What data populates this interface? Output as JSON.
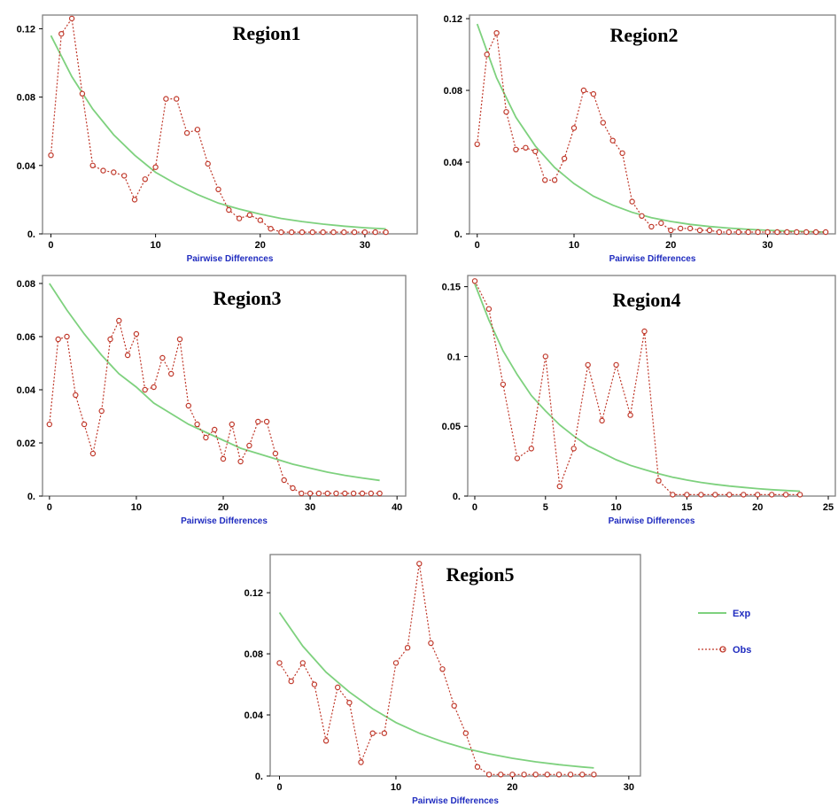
{
  "colors": {
    "exp": "#7ed17e",
    "obs": "#c0392b",
    "frame": "#808080",
    "xlabel": "#1f2bbf"
  },
  "legend": {
    "placement": "right-of-region5",
    "entries": [
      {
        "label": "Exp",
        "style": "solid-line"
      },
      {
        "label": "Obs",
        "style": "dotted-circle"
      }
    ]
  },
  "chart_data": [
    {
      "type": "line",
      "title": "Region1",
      "xlabel": "Pairwise Differences",
      "ylabel": "",
      "xlim": [
        -0.8,
        35
      ],
      "ylim": [
        0,
        0.128
      ],
      "x_ticks": [
        0,
        10,
        20,
        30
      ],
      "x_tick_labels": [
        "0",
        "10",
        "20",
        "30"
      ],
      "y_ticks": [
        0,
        0.04,
        0.08,
        0.12
      ],
      "y_tick_labels": [
        "0.",
        "0.04",
        "0.08",
        "0.12"
      ],
      "series": [
        {
          "name": "Exp",
          "x": [
            0,
            2,
            4,
            6,
            8,
            10,
            12,
            14,
            16,
            18,
            20,
            22,
            24,
            26,
            28,
            30,
            32
          ],
          "values": [
            0.116,
            0.092,
            0.073,
            0.058,
            0.046,
            0.036,
            0.029,
            0.023,
            0.018,
            0.0145,
            0.0115,
            0.009,
            0.0072,
            0.0057,
            0.0045,
            0.0036,
            0.0029
          ]
        },
        {
          "name": "Obs",
          "x": [
            0,
            1,
            2,
            3,
            4,
            5,
            6,
            7,
            8,
            9,
            10,
            11,
            12,
            13,
            14,
            15,
            16,
            17,
            18,
            19,
            20,
            21,
            22,
            23,
            24,
            25,
            26,
            27,
            28,
            29,
            30,
            31,
            32
          ],
          "values": [
            0.046,
            0.117,
            0.126,
            0.082,
            0.04,
            0.037,
            0.036,
            0.034,
            0.02,
            0.032,
            0.039,
            0.079,
            0.079,
            0.059,
            0.061,
            0.041,
            0.026,
            0.014,
            0.009,
            0.011,
            0.008,
            0.003,
            0.001,
            0.001,
            0.001,
            0.001,
            0.001,
            0.001,
            0.001,
            0.001,
            0.001,
            0.001,
            0.001
          ]
        }
      ]
    },
    {
      "type": "line",
      "title": "Region2",
      "xlabel": "Pairwise Differences",
      "ylabel": "",
      "xlim": [
        -0.8,
        37
      ],
      "ylim": [
        0,
        0.122
      ],
      "x_ticks": [
        0,
        10,
        20,
        30
      ],
      "x_tick_labels": [
        "0",
        "10",
        "20",
        "30"
      ],
      "y_ticks": [
        0,
        0.04,
        0.08,
        0.12
      ],
      "y_tick_labels": [
        "0.",
        "0.04",
        "0.08",
        "0.12"
      ],
      "series": [
        {
          "name": "Exp",
          "x": [
            0,
            2,
            4,
            6,
            8,
            10,
            12,
            14,
            16,
            18,
            20,
            22,
            24,
            26,
            28,
            30,
            32,
            34,
            36
          ],
          "values": [
            0.117,
            0.087,
            0.065,
            0.049,
            0.037,
            0.028,
            0.021,
            0.016,
            0.012,
            0.009,
            0.0069,
            0.0053,
            0.0041,
            0.0032,
            0.0025,
            0.002,
            0.0016,
            0.0013,
            0.001
          ]
        },
        {
          "name": "Obs",
          "x": [
            0,
            1,
            2,
            3,
            4,
            5,
            6,
            7,
            8,
            9,
            10,
            11,
            12,
            13,
            14,
            15,
            16,
            17,
            18,
            19,
            20,
            21,
            22,
            23,
            24,
            25,
            26,
            27,
            28,
            29,
            30,
            31,
            32,
            33,
            34,
            35,
            36
          ],
          "values": [
            0.05,
            0.1,
            0.112,
            0.068,
            0.047,
            0.048,
            0.046,
            0.03,
            0.03,
            0.042,
            0.059,
            0.08,
            0.078,
            0.062,
            0.052,
            0.045,
            0.018,
            0.01,
            0.004,
            0.006,
            0.002,
            0.003,
            0.003,
            0.002,
            0.002,
            0.001,
            0.001,
            0.001,
            0.001,
            0.001,
            0.001,
            0.001,
            0.001,
            0.001,
            0.001,
            0.001,
            0.001
          ]
        }
      ]
    },
    {
      "type": "line",
      "title": "Region3",
      "xlabel": "Pairwise Differences",
      "ylabel": "",
      "xlim": [
        -0.8,
        41
      ],
      "ylim": [
        0,
        0.083
      ],
      "x_ticks": [
        0,
        10,
        20,
        30,
        40
      ],
      "x_tick_labels": [
        "0",
        "10",
        "20",
        "30",
        "40"
      ],
      "y_ticks": [
        0,
        0.02,
        0.04,
        0.06,
        0.08
      ],
      "y_tick_labels": [
        "0.",
        "0.02",
        "0.04",
        "0.06",
        "0.08"
      ],
      "series": [
        {
          "name": "Exp",
          "x": [
            0,
            2,
            4,
            6,
            8,
            10,
            12,
            14,
            16,
            18,
            20,
            22,
            24,
            26,
            28,
            30,
            32,
            34,
            36,
            38
          ],
          "values": [
            0.08,
            0.07,
            0.061,
            0.053,
            0.046,
            0.041,
            0.035,
            0.031,
            0.027,
            0.024,
            0.021,
            0.018,
            0.016,
            0.014,
            0.012,
            0.0105,
            0.009,
            0.0078,
            0.0068,
            0.0059
          ]
        },
        {
          "name": "Obs",
          "x": [
            0,
            1,
            2,
            3,
            4,
            5,
            6,
            7,
            8,
            9,
            10,
            11,
            12,
            13,
            14,
            15,
            16,
            17,
            18,
            19,
            20,
            21,
            22,
            23,
            24,
            25,
            26,
            27,
            28,
            29,
            30,
            31,
            32,
            33,
            34,
            35,
            36,
            37,
            38
          ],
          "values": [
            0.027,
            0.059,
            0.06,
            0.038,
            0.027,
            0.016,
            0.032,
            0.059,
            0.066,
            0.053,
            0.061,
            0.04,
            0.041,
            0.052,
            0.046,
            0.059,
            0.034,
            0.027,
            0.022,
            0.025,
            0.014,
            0.027,
            0.013,
            0.019,
            0.028,
            0.028,
            0.016,
            0.006,
            0.003,
            0.001,
            0.001,
            0.001,
            0.001,
            0.001,
            0.001,
            0.001,
            0.001,
            0.001,
            0.001
          ]
        }
      ]
    },
    {
      "type": "line",
      "title": "Region4",
      "xlabel": "Pairwise Differences",
      "ylabel": "",
      "xlim": [
        -0.5,
        25.5
      ],
      "ylim": [
        0,
        0.158
      ],
      "x_ticks": [
        0,
        5,
        10,
        15,
        20,
        25
      ],
      "x_tick_labels": [
        "0",
        "5",
        "10",
        "15",
        "20",
        "25"
      ],
      "y_ticks": [
        0,
        0.05,
        0.1,
        0.15
      ],
      "y_tick_labels": [
        "0.",
        "0.05",
        "0.1",
        "0.15"
      ],
      "series": [
        {
          "name": "Exp",
          "x": [
            0,
            1,
            2,
            3,
            4,
            5,
            6,
            7,
            8,
            9,
            10,
            11,
            12,
            13,
            14,
            15,
            16,
            17,
            18,
            19,
            20,
            21,
            22,
            23
          ],
          "values": [
            0.152,
            0.126,
            0.104,
            0.087,
            0.072,
            0.061,
            0.051,
            0.043,
            0.036,
            0.031,
            0.026,
            0.022,
            0.019,
            0.016,
            0.0135,
            0.0115,
            0.0098,
            0.0084,
            0.0072,
            0.0062,
            0.0053,
            0.0046,
            0.004,
            0.0035
          ]
        },
        {
          "name": "Obs",
          "x": [
            0,
            1,
            2,
            3,
            4,
            5,
            6,
            7,
            8,
            9,
            10,
            11,
            12,
            13,
            14,
            15,
            16,
            17,
            18,
            19,
            20,
            21,
            22,
            23
          ],
          "values": [
            0.154,
            0.134,
            0.08,
            0.027,
            0.034,
            0.1,
            0.007,
            0.034,
            0.094,
            0.054,
            0.094,
            0.058,
            0.118,
            0.011,
            0.001,
            0.001,
            0.001,
            0.001,
            0.001,
            0.001,
            0.001,
            0.001,
            0.001,
            0.001
          ]
        }
      ]
    },
    {
      "type": "line",
      "title": "Region5",
      "xlabel": "Pairwise Differences",
      "ylabel": "",
      "xlim": [
        -0.8,
        31
      ],
      "ylim": [
        0,
        0.145
      ],
      "x_ticks": [
        0,
        10,
        20,
        30
      ],
      "x_tick_labels": [
        "0",
        "10",
        "20",
        "30"
      ],
      "y_ticks": [
        0,
        0.04,
        0.08,
        0.12
      ],
      "y_tick_labels": [
        "0.",
        "0.04",
        "0.08",
        "0.12"
      ],
      "series": [
        {
          "name": "Exp",
          "x": [
            0,
            2,
            4,
            6,
            8,
            10,
            12,
            14,
            16,
            18,
            20,
            22,
            24,
            26,
            27
          ],
          "values": [
            0.107,
            0.085,
            0.068,
            0.055,
            0.044,
            0.035,
            0.028,
            0.0225,
            0.018,
            0.0145,
            0.0116,
            0.0093,
            0.0074,
            0.0059,
            0.0053
          ]
        },
        {
          "name": "Obs",
          "x": [
            0,
            1,
            2,
            3,
            4,
            5,
            6,
            7,
            8,
            9,
            10,
            11,
            12,
            13,
            14,
            15,
            16,
            17,
            18,
            19,
            20,
            21,
            22,
            23,
            24,
            25,
            26,
            27
          ],
          "values": [
            0.074,
            0.062,
            0.074,
            0.06,
            0.023,
            0.058,
            0.048,
            0.009,
            0.028,
            0.028,
            0.074,
            0.084,
            0.139,
            0.087,
            0.07,
            0.046,
            0.028,
            0.006,
            0.001,
            0.001,
            0.001,
            0.001,
            0.001,
            0.001,
            0.001,
            0.001,
            0.001,
            0.001
          ]
        }
      ]
    }
  ]
}
